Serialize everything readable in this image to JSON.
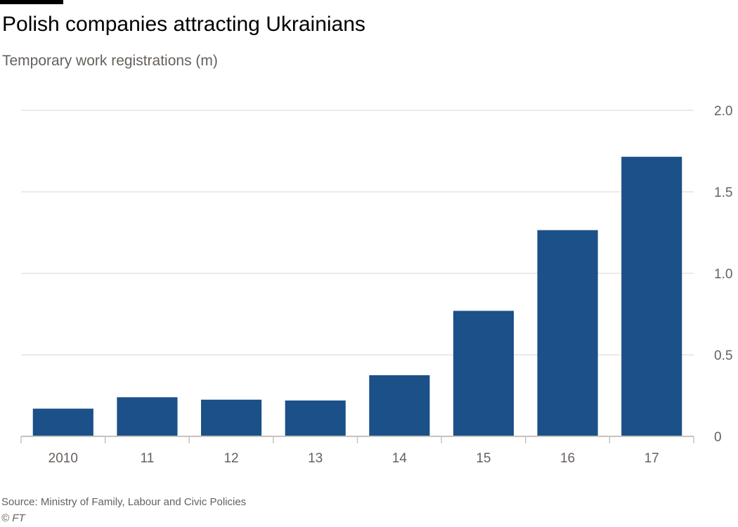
{
  "header": {
    "title": "Polish companies attracting Ukrainians",
    "subtitle": "Temporary work registrations (m)"
  },
  "footer": {
    "source": "Source: Ministry of Family, Labour and Civic Policies",
    "credit": "© FT"
  },
  "colors": {
    "bar": "#1b5088",
    "grid": "#e9e3dc",
    "axis": "#c9c3bc",
    "accent": "#000000"
  },
  "chart_data": {
    "type": "bar",
    "title": "Polish companies attracting Ukrainians",
    "subtitle": "Temporary work registrations (m)",
    "categories": [
      "2010",
      "11",
      "12",
      "13",
      "14",
      "15",
      "16",
      "17"
    ],
    "values": [
      0.17,
      0.24,
      0.225,
      0.22,
      0.375,
      0.77,
      1.265,
      1.715
    ],
    "ylim": [
      0,
      2.0
    ],
    "yticks": [
      0,
      0.5,
      1.0,
      1.5,
      2.0
    ],
    "ytick_labels": [
      "0",
      "0.5",
      "1.0",
      "1.5",
      "2.0"
    ],
    "y_axis_position": "right",
    "grid": true,
    "legend": "none"
  }
}
